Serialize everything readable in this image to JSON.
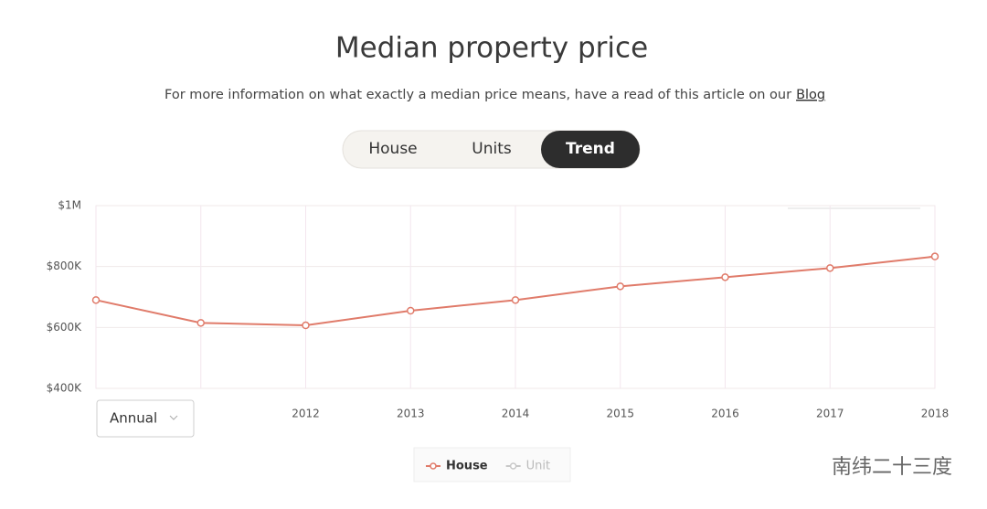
{
  "header": {
    "title": "Median property price",
    "subtitle": "For more information on what exactly a median price means, have a read of this article on our",
    "link": "Blog"
  },
  "tabs": [
    "House",
    "Units",
    "Trend"
  ],
  "active_tab": 2,
  "dropdown": "Annual",
  "watermark": "南纬二十三度",
  "chart_data": {
    "type": "line",
    "categories": [
      null,
      null,
      "2012",
      "2013",
      "2014",
      "2015",
      "2016",
      "2017",
      "2018"
    ],
    "series": [
      {
        "name": "House",
        "color": "#e07b6a",
        "values": [
          690000,
          615000,
          607000,
          655000,
          690000,
          735000,
          765000,
          795000,
          833000
        ]
      },
      {
        "name": "Unit",
        "color": "#c8c8c8",
        "values": [
          null,
          null,
          null,
          null,
          null,
          null,
          null,
          null,
          null
        ]
      }
    ],
    "ylim": [
      400000,
      1000000
    ],
    "yticks": [
      {
        "value": 400000,
        "label": "$400K"
      },
      {
        "value": 600000,
        "label": "$600K"
      },
      {
        "value": 800000,
        "label": "$800K"
      },
      {
        "value": 1000000,
        "label": "$1M"
      }
    ],
    "grid": true
  }
}
